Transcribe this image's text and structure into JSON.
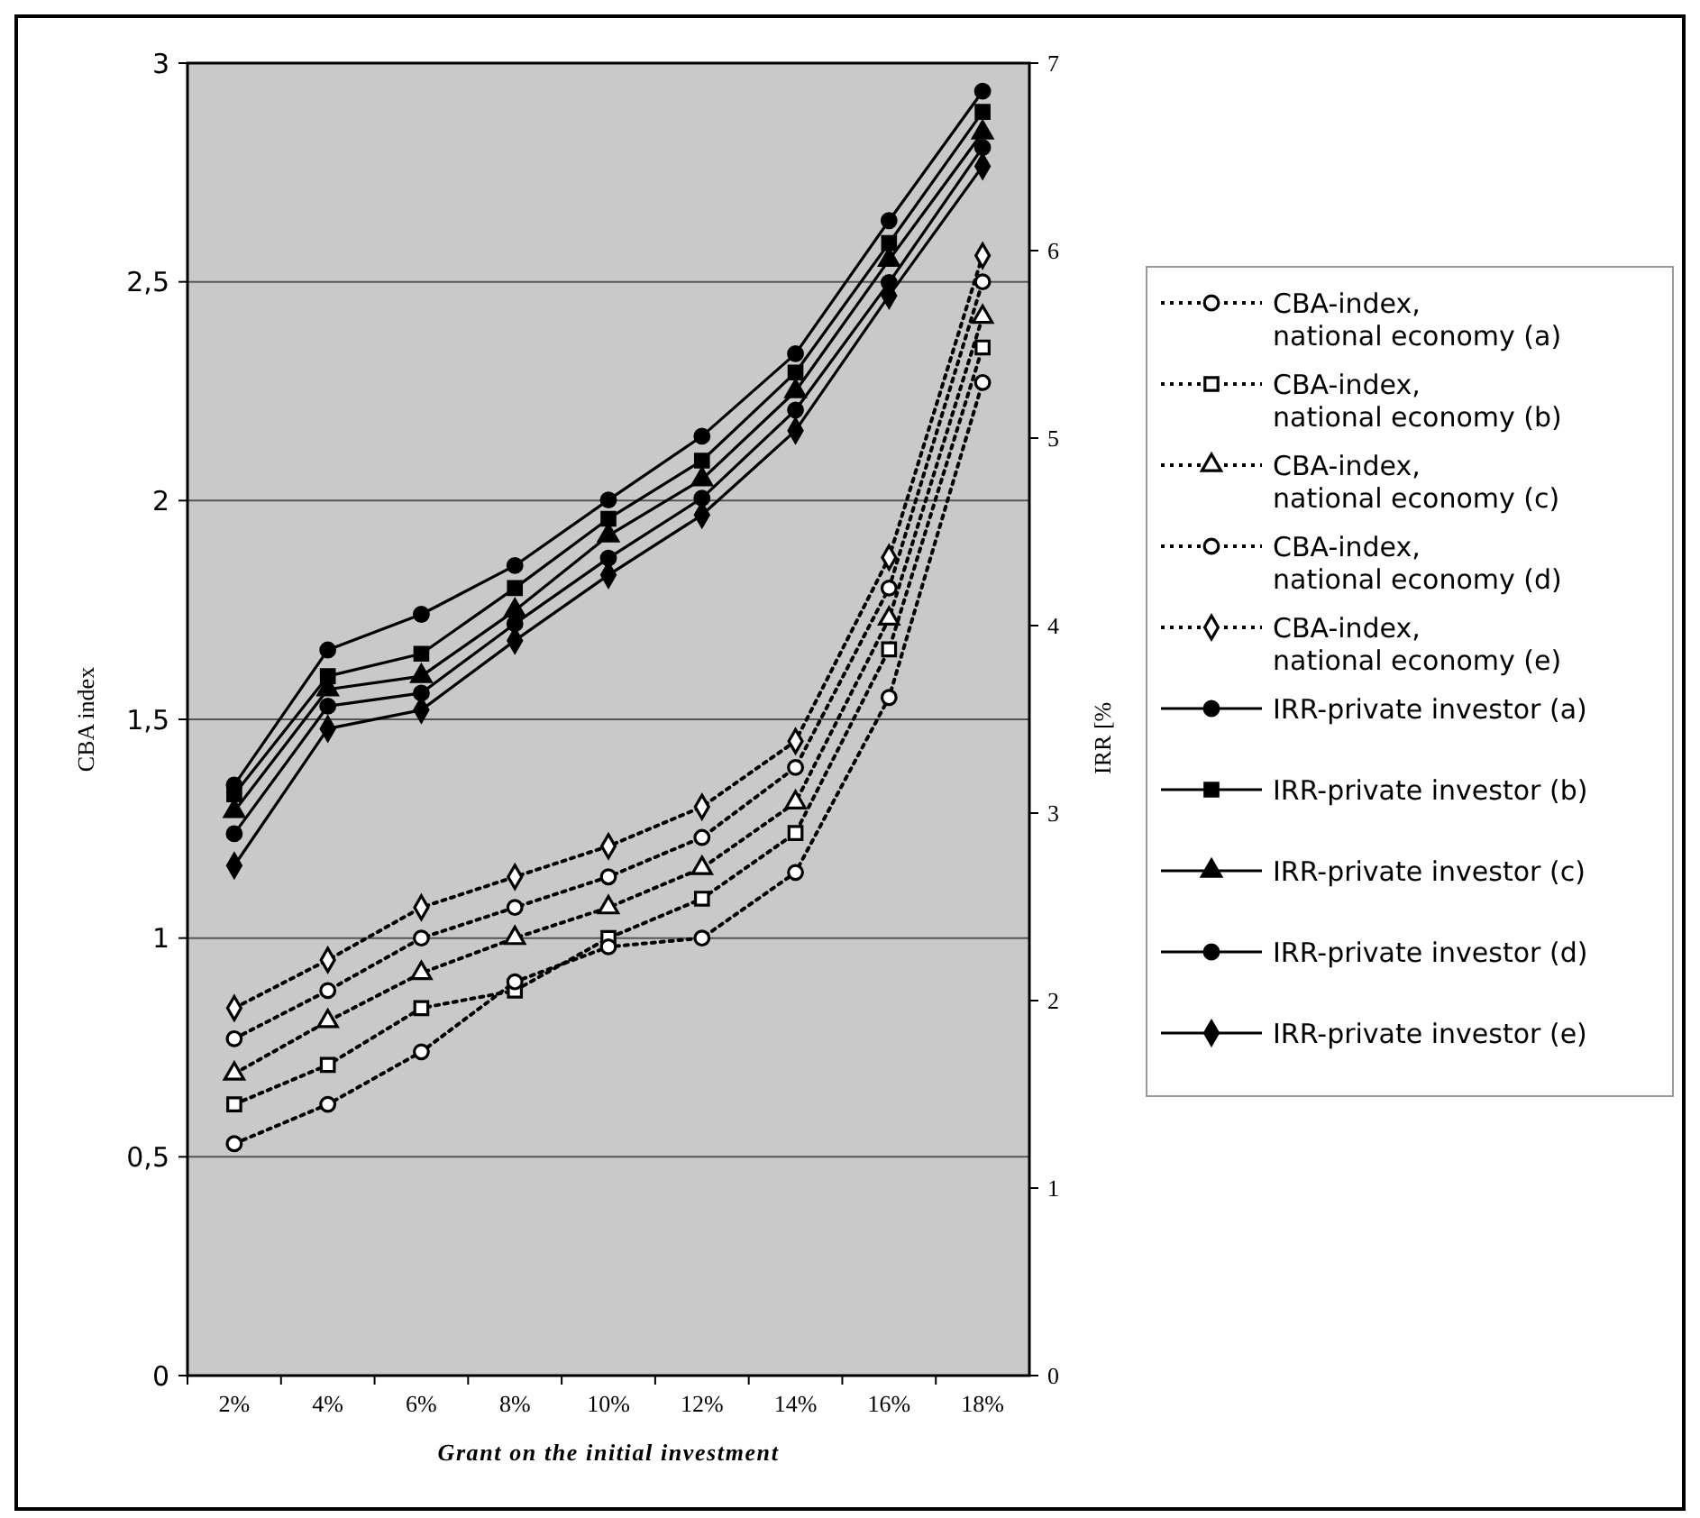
{
  "chart_data": {
    "type": "line",
    "xlabel": "Grant on the initial investment",
    "ylabel": "CBA index",
    "y2label": "IRR [%",
    "categories": [
      "2%",
      "4%",
      "6%",
      "8%",
      "10%",
      "12%",
      "14%",
      "16%",
      "18%"
    ],
    "ylim": [
      0,
      3
    ],
    "yticks": [
      0,
      {
        "value": 0.5,
        "label": "0,5"
      },
      1,
      {
        "value": 1.5,
        "label": "1,5"
      },
      2,
      {
        "value": 2.5,
        "label": "2,5"
      },
      3
    ],
    "y2lim": [
      0,
      7
    ],
    "y2ticks": [
      0,
      1,
      2,
      3,
      4,
      5,
      6,
      7
    ],
    "grid": "y",
    "legend": "right",
    "series": [
      {
        "name": "CBA-index, national economy (a)",
        "color": "#000000",
        "marker": "circle",
        "line_style": "dotted",
        "values": [
          0.53,
          0.62,
          0.74,
          0.9,
          0.98,
          1.0,
          1.15,
          1.55,
          2.27
        ]
      },
      {
        "name": "CBA-index, national economy (b)",
        "color": "#000000",
        "marker": "square",
        "line_style": "dotted",
        "values": [
          0.62,
          0.71,
          0.84,
          0.88,
          1.0,
          1.09,
          1.24,
          1.66,
          2.35
        ]
      },
      {
        "name": "CBA-index, national economy (c)",
        "color": "#000000",
        "marker": "triangle",
        "line_style": "dotted",
        "values": [
          0.69,
          0.81,
          0.92,
          1.0,
          1.07,
          1.16,
          1.31,
          1.73,
          2.42
        ]
      },
      {
        "name": "CBA-index, national economy (d)",
        "color": "#000000",
        "marker": "circle",
        "line_style": "dotted",
        "values": [
          0.77,
          0.88,
          1.0,
          1.07,
          1.14,
          1.23,
          1.39,
          1.8,
          2.5
        ]
      },
      {
        "name": "CBA-index, national economy (e)",
        "color": "#000000",
        "marker": "diamond",
        "line_style": "dotted",
        "values": [
          0.84,
          0.95,
          1.07,
          1.14,
          1.21,
          1.3,
          1.45,
          1.87,
          2.56
        ]
      },
      {
        "name": "IRR-private investor (a)",
        "color": "#000000",
        "marker": "circle",
        "line_style": "solid",
        "axis": "y2",
        "values": [
          3.15,
          3.87,
          4.06,
          4.32,
          4.67,
          5.01,
          5.45,
          6.16,
          6.85
        ]
      },
      {
        "name": "IRR-private investor (b)",
        "color": "#000000",
        "marker": "square",
        "line_style": "solid",
        "axis": "y2",
        "values": [
          3.1,
          3.73,
          3.85,
          4.2,
          4.57,
          4.88,
          5.35,
          6.04,
          6.74
        ]
      },
      {
        "name": "IRR-private investor (c)",
        "color": "#000000",
        "marker": "triangle",
        "line_style": "solid",
        "axis": "y2",
        "values": [
          3.01,
          3.66,
          3.73,
          4.08,
          4.48,
          4.78,
          5.25,
          5.95,
          6.63
        ]
      },
      {
        "name": "IRR-private investor (d)",
        "color": "#000000",
        "marker": "circle",
        "line_style": "solid",
        "axis": "y2",
        "values": [
          2.89,
          3.57,
          3.64,
          4.01,
          4.36,
          4.68,
          5.15,
          5.83,
          6.55
        ]
      },
      {
        "name": "IRR-private investor (e)",
        "color": "#000000",
        "marker": "diamond",
        "line_style": "solid",
        "axis": "y2",
        "values": [
          2.72,
          3.45,
          3.55,
          3.92,
          4.27,
          4.59,
          5.04,
          5.76,
          6.45
        ]
      }
    ]
  }
}
